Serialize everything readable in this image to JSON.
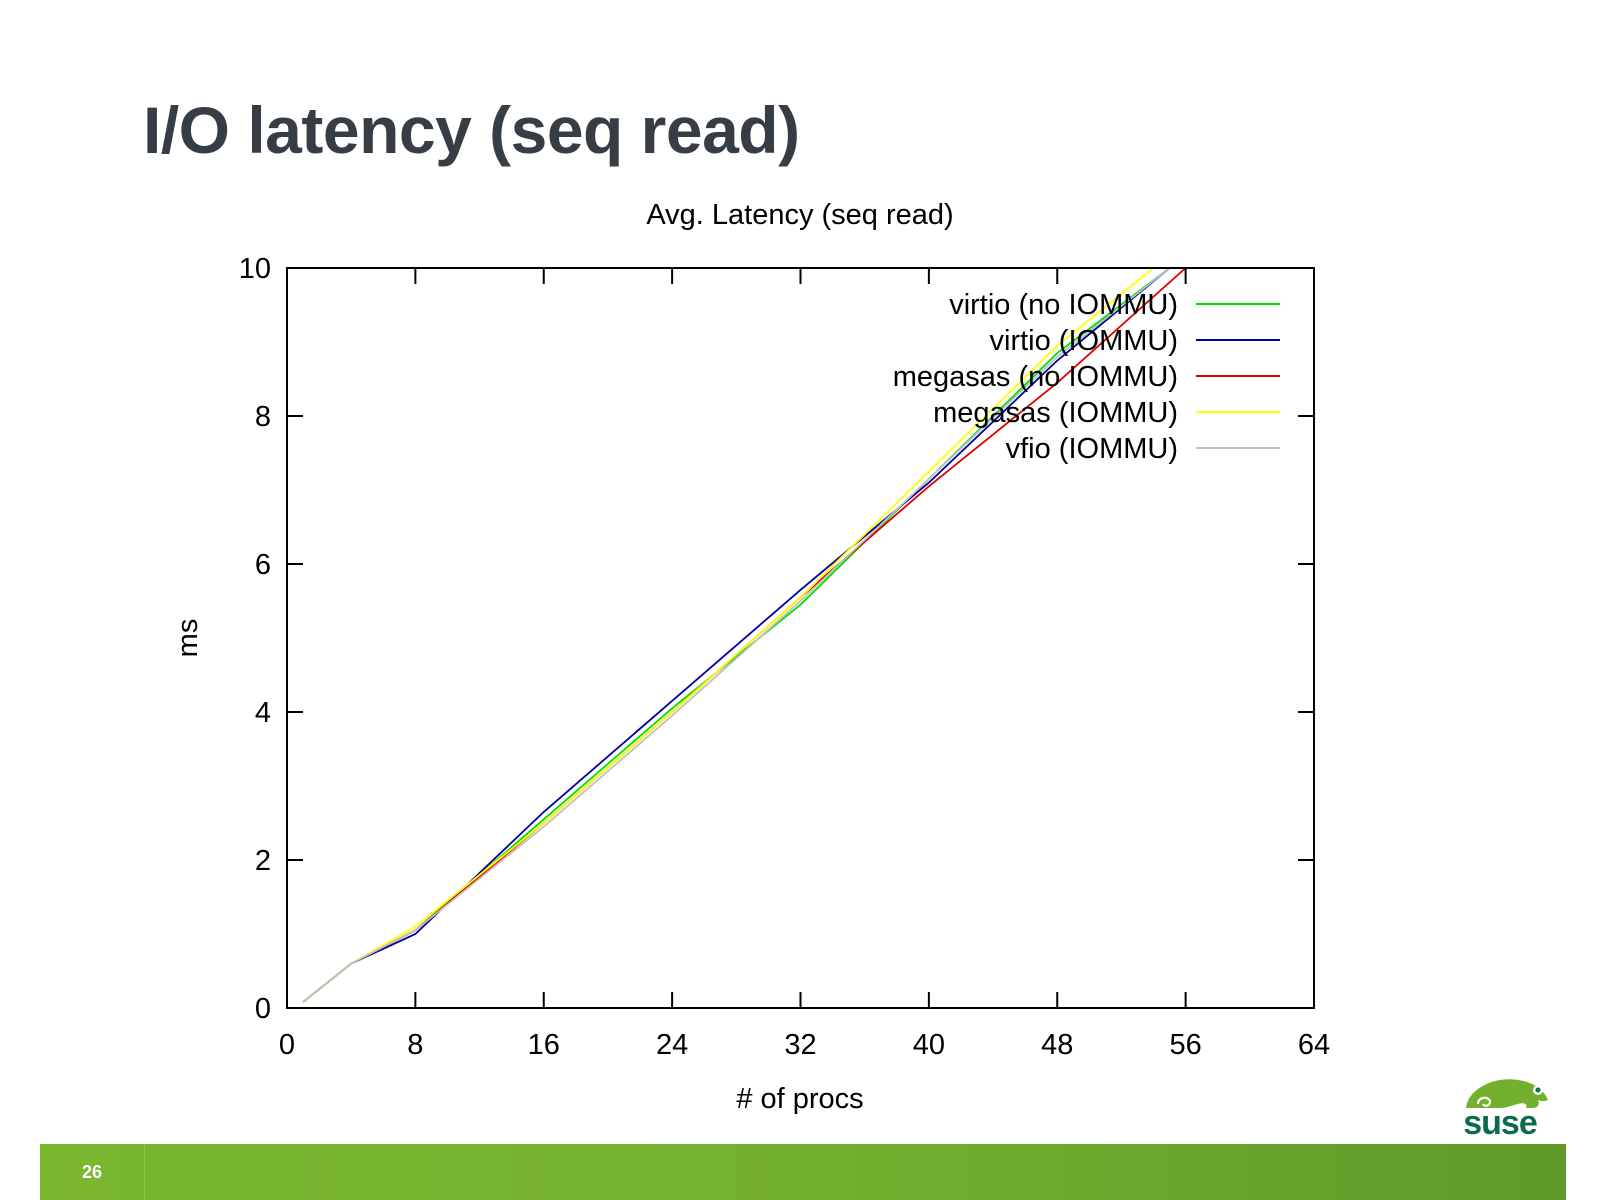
{
  "slide": {
    "title": "I/O latency (seq read)",
    "page_number": "26"
  },
  "colors": {
    "title": "#363d45",
    "footer_green": "#73b02e",
    "logo_green": "#73b02e",
    "logo_dark": "#0c6a4f"
  },
  "icons": {
    "logo": "suse-chameleon-logo"
  },
  "chart_data": {
    "type": "line",
    "title": "Avg. Latency (seq read)",
    "xlabel": "# of procs",
    "ylabel": "ms",
    "xlim": [
      0,
      64
    ],
    "ylim": [
      0,
      10
    ],
    "xticks": [
      0,
      8,
      16,
      24,
      32,
      40,
      48,
      56,
      64
    ],
    "yticks": [
      0,
      2,
      4,
      6,
      8,
      10
    ],
    "grid": false,
    "legend_position": "top-right",
    "series": [
      {
        "name": "virtio (no IOMMU)",
        "color": "#00e000",
        "x": [
          1,
          4,
          8,
          16,
          24,
          32,
          40,
          48,
          55
        ],
        "y": [
          0.08,
          0.6,
          1.05,
          2.55,
          4.05,
          5.45,
          7.15,
          8.85,
          10.0
        ]
      },
      {
        "name": "virtio (IOMMU)",
        "color": "#0000a0",
        "x": [
          1,
          4,
          8,
          16,
          24,
          32,
          40,
          48,
          55
        ],
        "y": [
          0.08,
          0.6,
          1.0,
          2.65,
          4.15,
          5.65,
          7.1,
          8.75,
          10.0
        ]
      },
      {
        "name": "megasas (no IOMMU)",
        "color": "#e00000",
        "x": [
          1,
          4,
          8,
          16,
          24,
          32,
          40,
          48,
          56
        ],
        "y": [
          0.08,
          0.6,
          1.05,
          2.5,
          4.0,
          5.55,
          7.05,
          8.45,
          10.0
        ]
      },
      {
        "name": "megasas (IOMMU)",
        "color": "#ffff00",
        "x": [
          1,
          4,
          8,
          16,
          24,
          32,
          40,
          48,
          54
        ],
        "y": [
          0.08,
          0.6,
          1.1,
          2.5,
          4.0,
          5.55,
          7.25,
          8.95,
          10.0
        ]
      },
      {
        "name": "vfio (IOMMU)",
        "color": "#c0c0c0",
        "x": [
          1,
          4,
          8,
          16,
          24,
          32,
          40,
          48,
          55
        ],
        "y": [
          0.08,
          0.6,
          1.05,
          2.45,
          3.95,
          5.5,
          7.15,
          8.8,
          10.0
        ]
      }
    ]
  }
}
